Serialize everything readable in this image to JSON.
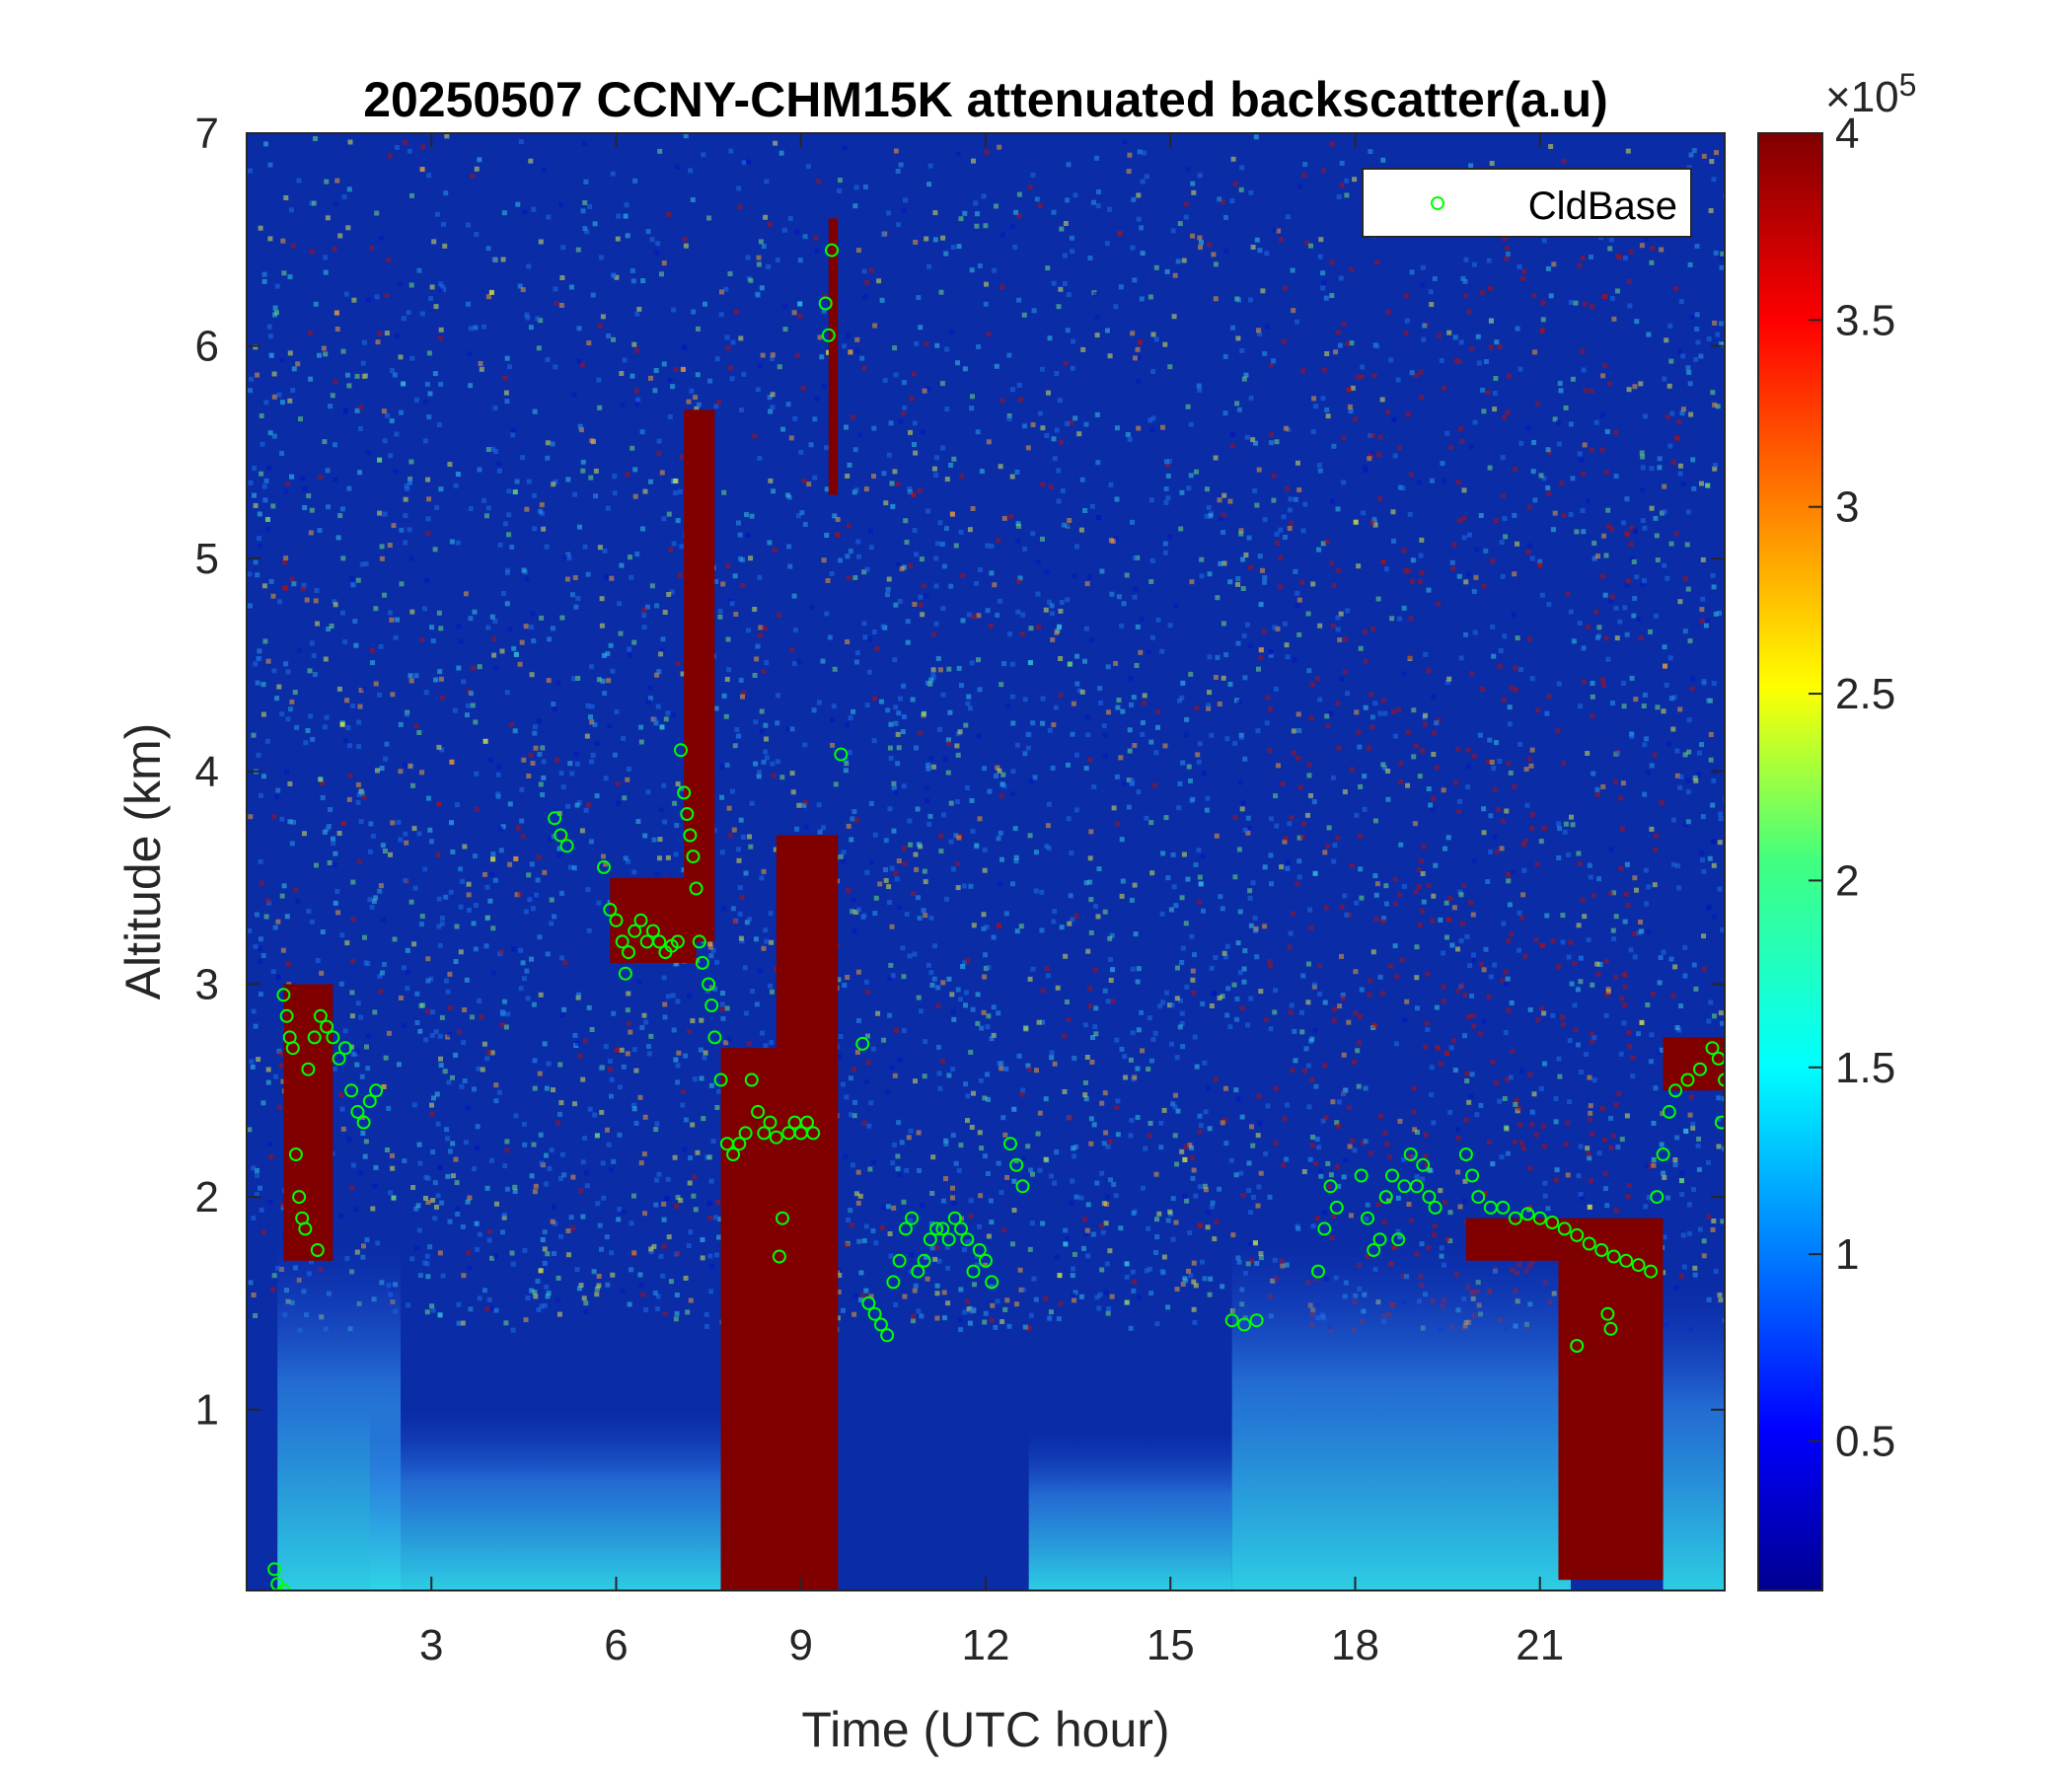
{
  "chart_data": {
    "type": "heatmap",
    "title": "20250507 CCNY-CHM15K attenuated backscatter(a.u)",
    "xlabel": "Time (UTC hour)",
    "ylabel": "Altitude (km)",
    "xlim": [
      0,
      24
    ],
    "ylim": [
      0.15,
      7
    ],
    "xticks": [
      3,
      6,
      9,
      12,
      15,
      18,
      21
    ],
    "yticks": [
      1,
      2,
      3,
      4,
      5,
      6,
      7
    ],
    "colorbar": {
      "range": [
        10000,
        400000
      ],
      "ticks": [
        0.5,
        1,
        1.5,
        2,
        2.5,
        3,
        3.5,
        4
      ],
      "multiplier_base": "×10",
      "multiplier_exp": "5",
      "colormap": "jet"
    },
    "colors": {
      "background": "#0a2ca6",
      "cloud": "#800000",
      "marker": "#00ff00"
    },
    "clouds": [
      {
        "t0": 0.6,
        "t1": 1.4,
        "bottom": 1.7,
        "top": 3.0
      },
      {
        "t0": 5.9,
        "t1": 7.3,
        "bottom": 3.1,
        "top": 3.5
      },
      {
        "t0": 7.1,
        "t1": 7.6,
        "bottom": 3.2,
        "top": 5.7
      },
      {
        "t0": 7.7,
        "t1": 9.6,
        "bottom": 0.15,
        "top": 2.7
      },
      {
        "t0": 8.6,
        "t1": 9.6,
        "bottom": 0.15,
        "top": 3.7
      },
      {
        "t0": 9.45,
        "t1": 9.6,
        "bottom": 5.3,
        "top": 6.6
      },
      {
        "t0": 19.8,
        "t1": 21.3,
        "bottom": 1.7,
        "top": 1.9
      },
      {
        "t0": 21.3,
        "t1": 23.0,
        "bottom": 0.2,
        "top": 1.9
      },
      {
        "t0": 23.0,
        "t1": 24.0,
        "bottom": 2.5,
        "top": 2.75
      }
    ],
    "aerosol_layers": [
      {
        "t0": 0.5,
        "t1": 2.5,
        "bottom": 0.15,
        "top": 1.8
      },
      {
        "t0": 2.0,
        "t1": 7.7,
        "bottom": 0.15,
        "top": 1.0
      },
      {
        "t0": 12.7,
        "t1": 16.0,
        "bottom": 0.15,
        "top": 0.9
      },
      {
        "t0": 16.0,
        "t1": 21.5,
        "bottom": 0.15,
        "top": 1.8
      },
      {
        "t0": 23.0,
        "t1": 24.0,
        "bottom": 0.15,
        "top": 1.6
      }
    ],
    "series": [
      {
        "name": "CldBase",
        "marker": "circle",
        "points": [
          [
            0.6,
            2.95
          ],
          [
            0.65,
            2.85
          ],
          [
            0.7,
            2.75
          ],
          [
            0.75,
            2.7
          ],
          [
            0.8,
            2.2
          ],
          [
            0.85,
            2.0
          ],
          [
            0.9,
            1.9
          ],
          [
            0.95,
            1.85
          ],
          [
            1.0,
            2.6
          ],
          [
            1.1,
            2.75
          ],
          [
            1.15,
            1.75
          ],
          [
            1.2,
            2.85
          ],
          [
            1.3,
            2.8
          ],
          [
            1.4,
            2.75
          ],
          [
            1.5,
            2.65
          ],
          [
            1.6,
            2.7
          ],
          [
            1.7,
            2.5
          ],
          [
            1.8,
            2.4
          ],
          [
            1.9,
            2.35
          ],
          [
            2.0,
            2.45
          ],
          [
            2.1,
            2.5
          ],
          [
            0.45,
            0.25
          ],
          [
            0.5,
            0.18
          ],
          [
            0.6,
            0.15
          ],
          [
            5.0,
            3.78
          ],
          [
            5.1,
            3.7
          ],
          [
            5.2,
            3.65
          ],
          [
            5.8,
            3.55
          ],
          [
            5.9,
            3.35
          ],
          [
            6.0,
            3.3
          ],
          [
            6.1,
            3.2
          ],
          [
            6.15,
            3.05
          ],
          [
            6.2,
            3.15
          ],
          [
            6.3,
            3.25
          ],
          [
            6.4,
            3.3
          ],
          [
            6.5,
            3.2
          ],
          [
            6.6,
            3.25
          ],
          [
            6.7,
            3.2
          ],
          [
            6.8,
            3.15
          ],
          [
            6.9,
            3.18
          ],
          [
            7.0,
            3.2
          ],
          [
            7.05,
            4.1
          ],
          [
            7.1,
            3.9
          ],
          [
            7.15,
            3.8
          ],
          [
            7.2,
            3.7
          ],
          [
            7.25,
            3.6
          ],
          [
            7.3,
            3.45
          ],
          [
            7.35,
            3.2
          ],
          [
            7.4,
            3.1
          ],
          [
            7.5,
            3.0
          ],
          [
            7.55,
            2.9
          ],
          [
            7.6,
            2.75
          ],
          [
            7.7,
            2.55
          ],
          [
            7.8,
            2.25
          ],
          [
            7.9,
            2.2
          ],
          [
            8.0,
            2.25
          ],
          [
            8.1,
            2.3
          ],
          [
            8.2,
            2.55
          ],
          [
            8.3,
            2.4
          ],
          [
            8.4,
            2.3
          ],
          [
            8.5,
            2.35
          ],
          [
            8.6,
            2.28
          ],
          [
            8.7,
            1.9
          ],
          [
            8.8,
            2.3
          ],
          [
            8.9,
            2.35
          ],
          [
            9.0,
            2.3
          ],
          [
            9.1,
            2.35
          ],
          [
            9.2,
            2.3
          ],
          [
            8.65,
            1.72
          ],
          [
            9.4,
            6.2
          ],
          [
            9.45,
            6.05
          ],
          [
            9.5,
            6.45
          ],
          [
            9.65,
            4.08
          ],
          [
            10.0,
            2.72
          ],
          [
            10.1,
            1.5
          ],
          [
            10.2,
            1.45
          ],
          [
            10.3,
            1.4
          ],
          [
            10.4,
            1.35
          ],
          [
            10.5,
            1.6
          ],
          [
            10.6,
            1.7
          ],
          [
            10.7,
            1.85
          ],
          [
            10.8,
            1.9
          ],
          [
            10.9,
            1.65
          ],
          [
            11.0,
            1.7
          ],
          [
            11.1,
            1.8
          ],
          [
            11.2,
            1.85
          ],
          [
            11.3,
            1.85
          ],
          [
            11.4,
            1.8
          ],
          [
            11.5,
            1.9
          ],
          [
            11.6,
            1.85
          ],
          [
            11.7,
            1.8
          ],
          [
            11.8,
            1.65
          ],
          [
            11.9,
            1.75
          ],
          [
            12.0,
            1.7
          ],
          [
            12.1,
            1.6
          ],
          [
            12.4,
            2.25
          ],
          [
            12.5,
            2.15
          ],
          [
            12.6,
            2.05
          ],
          [
            16.0,
            1.42
          ],
          [
            16.2,
            1.4
          ],
          [
            16.4,
            1.42
          ],
          [
            17.4,
            1.65
          ],
          [
            17.5,
            1.85
          ],
          [
            17.6,
            2.05
          ],
          [
            17.7,
            1.95
          ],
          [
            18.1,
            2.1
          ],
          [
            18.2,
            1.9
          ],
          [
            18.3,
            1.75
          ],
          [
            18.4,
            1.8
          ],
          [
            18.5,
            2.0
          ],
          [
            18.6,
            2.1
          ],
          [
            18.7,
            1.8
          ],
          [
            18.8,
            2.05
          ],
          [
            18.9,
            2.2
          ],
          [
            19.0,
            2.05
          ],
          [
            19.1,
            2.15
          ],
          [
            19.2,
            2.0
          ],
          [
            19.3,
            1.95
          ],
          [
            19.8,
            2.2
          ],
          [
            19.9,
            2.1
          ],
          [
            20.0,
            2.0
          ],
          [
            20.2,
            1.95
          ],
          [
            20.4,
            1.95
          ],
          [
            20.6,
            1.9
          ],
          [
            20.8,
            1.92
          ],
          [
            21.0,
            1.9
          ],
          [
            21.2,
            1.88
          ],
          [
            21.4,
            1.85
          ],
          [
            21.6,
            1.82
          ],
          [
            21.8,
            1.78
          ],
          [
            22.0,
            1.75
          ],
          [
            22.2,
            1.72
          ],
          [
            22.4,
            1.7
          ],
          [
            22.6,
            1.68
          ],
          [
            22.8,
            1.65
          ],
          [
            21.6,
            1.3
          ],
          [
            22.1,
            1.45
          ],
          [
            22.15,
            1.38
          ],
          [
            22.9,
            2.0
          ],
          [
            23.0,
            2.2
          ],
          [
            23.1,
            2.4
          ],
          [
            23.2,
            2.5
          ],
          [
            23.4,
            2.55
          ],
          [
            23.6,
            2.6
          ],
          [
            23.8,
            2.7
          ],
          [
            23.9,
            2.65
          ],
          [
            24.0,
            2.55
          ],
          [
            23.95,
            2.35
          ]
        ]
      }
    ],
    "legend": {
      "position": "top-right",
      "entries": [
        "CldBase"
      ]
    }
  }
}
